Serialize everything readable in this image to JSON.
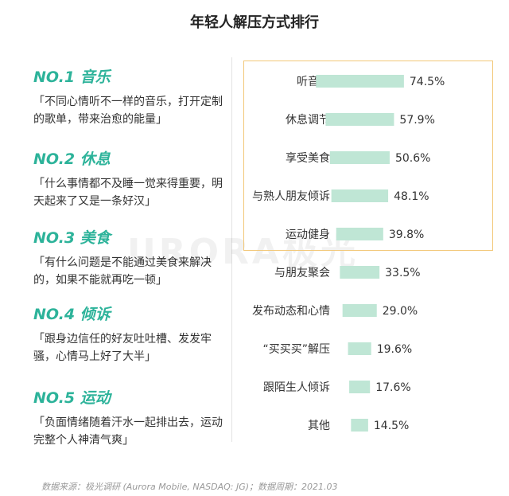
{
  "title": "年轻人解压方式排行",
  "ranks": [
    {
      "title": "NO.1 音乐",
      "quote": "「不同心情听不一样的音乐，打开定制的歌单，带来治愈的能量」"
    },
    {
      "title": "NO.2 休息",
      "quote": "「什么事情都不及睡一觉来得重要，明天起来了又是一条好汉」"
    },
    {
      "title": "NO.3 美食",
      "quote": "「有什么问题是不能通过美食来解决的，如果不能就再吃一顿」"
    },
    {
      "title": "NO.4 倾诉",
      "quote": "「跟身边信任的好友吐吐槽、发发牢骚，心情马上好了大半」"
    },
    {
      "title": "NO.5 运动",
      "quote": "「负面情绪随着汗水一起排出去，运动完整个人神清气爽」"
    }
  ],
  "chart_data": {
    "type": "bar",
    "orientation": "horizontal",
    "categories": [
      "听音乐",
      "休息调节",
      "享受美食",
      "与熟人朋友倾诉",
      "运动健身",
      "与朋友聚会",
      "发布动态和心情",
      "“买买买”解压",
      "跟陌生人倾诉",
      "其他"
    ],
    "values": [
      74.5,
      57.9,
      50.6,
      48.1,
      39.8,
      33.5,
      29.0,
      19.6,
      17.6,
      14.5
    ],
    "value_labels": [
      "74.5%",
      "57.9%",
      "50.6%",
      "48.1%",
      "39.8%",
      "33.5%",
      "29.0%",
      "19.6%",
      "17.6%",
      "14.5%"
    ],
    "unit": "%",
    "highlighted_top": 5,
    "bar_color": "#bfe6d5",
    "highlight_border_color": "#f2c879"
  },
  "watermark": "URORA极光",
  "source": "数据来源：极光调研 (Aurora Mobile, NASDAQ: JG)；数据周期：2021.03"
}
